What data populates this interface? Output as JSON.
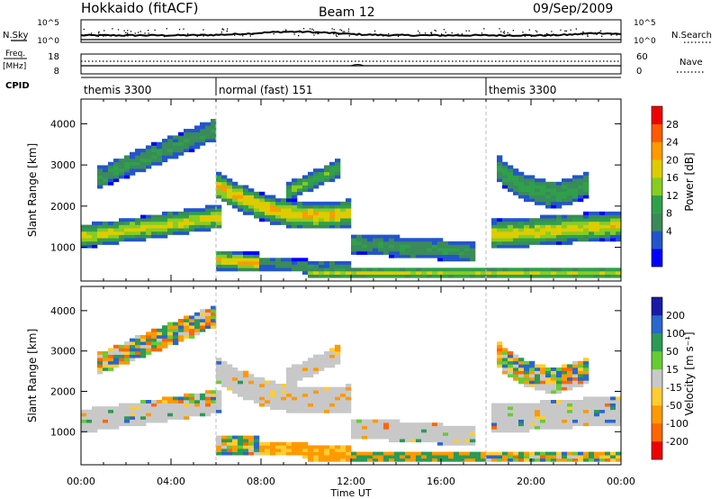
{
  "header": {
    "station": "Hokkaido (fitACF)",
    "beam": "Beam 12",
    "date": "09/Sep/2009"
  },
  "top_panels": {
    "nsky_label": "N.Sky",
    "nsearch_label": "N.Search",
    "count_axis_top": "10^5",
    "count_axis_bottom": "10^0",
    "freq_label_line1": "Freq.",
    "freq_label_line2": "[MHz]",
    "freq_ticks": [
      "18",
      "8"
    ],
    "nave_label": "Nave",
    "nave_ticks": [
      "60",
      "0"
    ],
    "cpid_label": "CPID",
    "cpid_segments": [
      {
        "label": "themis 3300",
        "start_hour": 0,
        "end_hour": 6
      },
      {
        "label": "normal (fast) 151",
        "start_hour": 6,
        "end_hour": 18
      },
      {
        "label": "themis 3300",
        "start_hour": 18,
        "end_hour": 24
      }
    ]
  },
  "chart_data": [
    {
      "type": "heatmap",
      "panel": "power",
      "ylabel": "Slant Range [km]",
      "xlim_hours": [
        0,
        24
      ],
      "ylim": [
        180,
        4600
      ],
      "yticks": [
        "1000",
        "2000",
        "3000",
        "4000"
      ],
      "colorbar_label": "Power [dB]",
      "colorbar_ticks": [
        "28",
        "24",
        "20",
        "16",
        "12",
        "8",
        "4"
      ],
      "colorbar_colors": [
        "#0000ff",
        "#2255cc",
        "#3a8a5a",
        "#2fa04a",
        "#88cc22",
        "#ddcc00",
        "#ff9a00",
        "#ff5a00",
        "#ee0000"
      ]
    },
    {
      "type": "heatmap",
      "panel": "velocity",
      "ylabel": "Slant Range [km]",
      "xlabel": "Time UT",
      "xlim_hours": [
        0,
        24
      ],
      "ylim": [
        180,
        4600
      ],
      "yticks": [
        "1000",
        "2000",
        "3000",
        "4000"
      ],
      "xticks": [
        "00:00",
        "04:00",
        "08:00",
        "12:00",
        "16:00",
        "20:00",
        "00:00"
      ],
      "colorbar_label": "Velocity [m s⁻¹]",
      "colorbar_ticks": [
        "200",
        "100",
        "50",
        "15",
        "-15",
        "-50",
        "-100",
        "-200"
      ],
      "colorbar_colors": [
        "#1a1aa6",
        "#2a66cc",
        "#2a9a55",
        "#66cc33",
        "#c8c8c8",
        "#ffcc33",
        "#ff9900",
        "#ff6600",
        "#ee0000"
      ],
      "ground_scatter_color": "#c8c8c8"
    }
  ]
}
